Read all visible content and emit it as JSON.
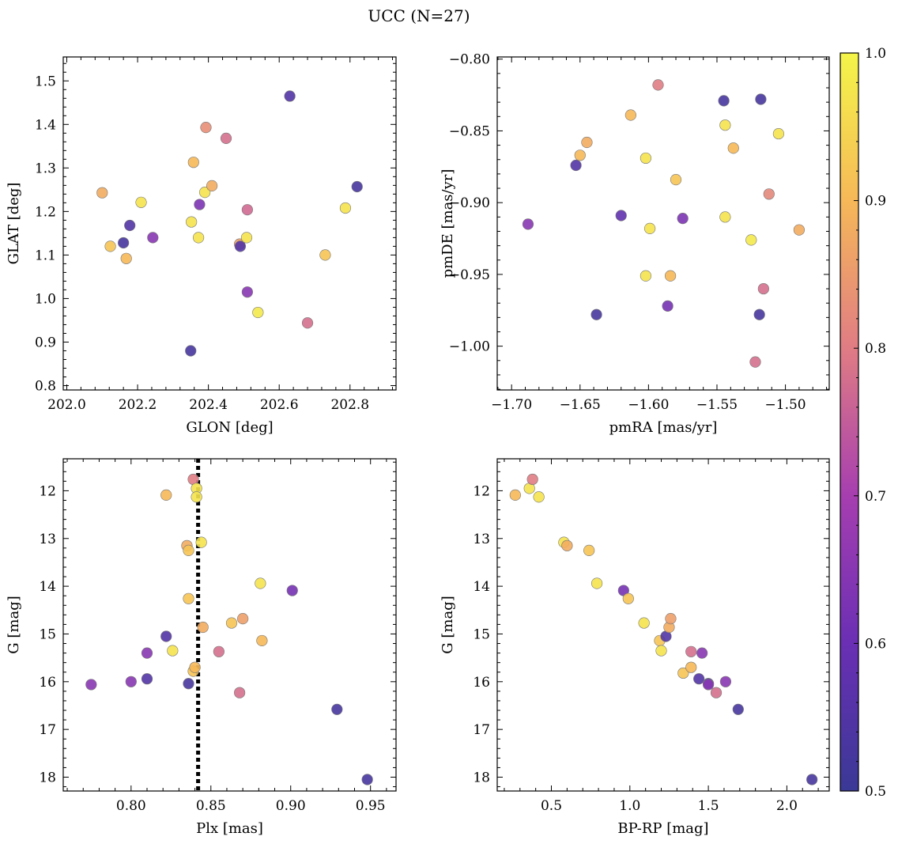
{
  "title": "UCC (N=27)",
  "colorbar": {
    "vmin": 0.5,
    "vmax": 1.0,
    "ticks": [
      "0.5",
      "0.6",
      "0.7",
      "0.8",
      "0.9",
      "1.0"
    ],
    "colormap": "plasma"
  },
  "chart_data": [
    {
      "type": "scatter",
      "id": "glon_glat",
      "xlabel": "GLON [deg]",
      "ylabel": "GLAT [deg]",
      "xlim": [
        201.99,
        202.93
      ],
      "ylim": [
        0.79,
        1.555
      ],
      "y_inverted": false,
      "xticks": [
        {
          "v": 202.0,
          "label": "202.0"
        },
        {
          "v": 202.2,
          "label": "202.2"
        },
        {
          "v": 202.4,
          "label": "202.4"
        },
        {
          "v": 202.6,
          "label": "202.6"
        },
        {
          "v": 202.8,
          "label": "202.8"
        }
      ],
      "yticks": [
        {
          "v": 0.8,
          "label": "0.8"
        },
        {
          "v": 0.9,
          "label": "0.9"
        },
        {
          "v": 1.0,
          "label": "1.0"
        },
        {
          "v": 1.1,
          "label": "1.1"
        },
        {
          "v": 1.2,
          "label": "1.2"
        },
        {
          "v": 1.3,
          "label": "1.3"
        },
        {
          "v": 1.4,
          "label": "1.4"
        },
        {
          "v": 1.5,
          "label": "1.5"
        }
      ],
      "points": [
        {
          "x": 202.1,
          "y": 1.243,
          "c": 0.88
        },
        {
          "x": 202.123,
          "y": 1.12,
          "c": 0.92
        },
        {
          "x": 202.16,
          "y": 1.128,
          "c": 0.53
        },
        {
          "x": 202.168,
          "y": 1.092,
          "c": 0.9
        },
        {
          "x": 202.178,
          "y": 1.168,
          "c": 0.55
        },
        {
          "x": 202.21,
          "y": 1.221,
          "c": 0.97
        },
        {
          "x": 202.243,
          "y": 1.14,
          "c": 0.65
        },
        {
          "x": 202.35,
          "y": 0.88,
          "c": 0.53
        },
        {
          "x": 202.352,
          "y": 1.176,
          "c": 0.97
        },
        {
          "x": 202.358,
          "y": 1.313,
          "c": 0.9
        },
        {
          "x": 202.372,
          "y": 1.14,
          "c": 0.97
        },
        {
          "x": 202.375,
          "y": 1.216,
          "c": 0.63
        },
        {
          "x": 202.39,
          "y": 1.244,
          "c": 0.97
        },
        {
          "x": 202.393,
          "y": 1.393,
          "c": 0.83
        },
        {
          "x": 202.41,
          "y": 1.259,
          "c": 0.88
        },
        {
          "x": 202.45,
          "y": 1.368,
          "c": 0.78
        },
        {
          "x": 202.488,
          "y": 1.125,
          "c": 0.86
        },
        {
          "x": 202.49,
          "y": 1.12,
          "c": 0.55
        },
        {
          "x": 202.508,
          "y": 1.14,
          "c": 0.97
        },
        {
          "x": 202.51,
          "y": 1.204,
          "c": 0.77
        },
        {
          "x": 202.51,
          "y": 1.015,
          "c": 0.65
        },
        {
          "x": 202.54,
          "y": 0.968,
          "c": 0.98
        },
        {
          "x": 202.63,
          "y": 1.465,
          "c": 0.55
        },
        {
          "x": 202.68,
          "y": 0.944,
          "c": 0.78
        },
        {
          "x": 202.73,
          "y": 1.1,
          "c": 0.92
        },
        {
          "x": 202.787,
          "y": 1.208,
          "c": 0.97
        },
        {
          "x": 202.82,
          "y": 1.257,
          "c": 0.53
        }
      ]
    },
    {
      "type": "scatter",
      "id": "pmra_pmde",
      "xlabel": "pmRA [mas/yr]",
      "ylabel": "pmDE [mas/yr]",
      "xlim": [
        -1.7105,
        -1.468
      ],
      "ylim": [
        -1.0305,
        -0.7985
      ],
      "y_inverted": false,
      "xticks": [
        {
          "v": -1.7,
          "label": "−1.70"
        },
        {
          "v": -1.65,
          "label": "−1.65"
        },
        {
          "v": -1.6,
          "label": "−1.60"
        },
        {
          "v": -1.55,
          "label": "−1.55"
        },
        {
          "v": -1.5,
          "label": "−1.50"
        }
      ],
      "yticks": [
        {
          "v": -0.8,
          "label": "−0.80"
        },
        {
          "v": -0.85,
          "label": "−0.85"
        },
        {
          "v": -0.9,
          "label": "−0.90"
        },
        {
          "v": -0.95,
          "label": "−0.95"
        },
        {
          "v": -1.0,
          "label": "−1.00"
        }
      ],
      "points": [
        {
          "x": -1.688,
          "y": -0.915,
          "c": 0.65
        },
        {
          "x": -1.653,
          "y": -0.874,
          "c": 0.55
        },
        {
          "x": -1.65,
          "y": -0.867,
          "c": 0.9
        },
        {
          "x": -1.645,
          "y": -0.858,
          "c": 0.88
        },
        {
          "x": -1.638,
          "y": -0.978,
          "c": 0.53
        },
        {
          "x": -1.62,
          "y": -0.909,
          "c": 0.58
        },
        {
          "x": -1.613,
          "y": -0.839,
          "c": 0.9
        },
        {
          "x": -1.602,
          "y": -0.869,
          "c": 0.97
        },
        {
          "x": -1.602,
          "y": -0.951,
          "c": 0.97
        },
        {
          "x": -1.599,
          "y": -0.918,
          "c": 0.97
        },
        {
          "x": -1.593,
          "y": -0.818,
          "c": 0.8
        },
        {
          "x": -1.586,
          "y": -0.972,
          "c": 0.62
        },
        {
          "x": -1.584,
          "y": -0.951,
          "c": 0.9
        },
        {
          "x": -1.58,
          "y": -0.884,
          "c": 0.92
        },
        {
          "x": -1.575,
          "y": -0.911,
          "c": 0.63
        },
        {
          "x": -1.545,
          "y": -0.829,
          "c": 0.53
        },
        {
          "x": -1.544,
          "y": -0.846,
          "c": 0.97
        },
        {
          "x": -1.544,
          "y": -0.91,
          "c": 0.97
        },
        {
          "x": -1.538,
          "y": -0.862,
          "c": 0.9
        },
        {
          "x": -1.525,
          "y": -0.926,
          "c": 0.98
        },
        {
          "x": -1.522,
          "y": -1.011,
          "c": 0.78
        },
        {
          "x": -1.519,
          "y": -0.978,
          "c": 0.53
        },
        {
          "x": -1.518,
          "y": -0.828,
          "c": 0.53
        },
        {
          "x": -1.516,
          "y": -0.96,
          "c": 0.78
        },
        {
          "x": -1.512,
          "y": -0.894,
          "c": 0.82
        },
        {
          "x": -1.505,
          "y": -0.852,
          "c": 0.97
        },
        {
          "x": -1.49,
          "y": -0.919,
          "c": 0.88
        }
      ]
    },
    {
      "type": "scatter",
      "id": "plx_g",
      "xlabel": "Plx [mas]",
      "ylabel": "G [mag]",
      "xlim": [
        0.7575,
        0.966
      ],
      "ylim": [
        11.33,
        18.29
      ],
      "y_inverted": true,
      "vline": {
        "x": 0.842,
        "style": "dotted"
      },
      "xticks": [
        {
          "v": 0.8,
          "label": "0.80"
        },
        {
          "v": 0.85,
          "label": "0.85"
        },
        {
          "v": 0.9,
          "label": "0.90"
        },
        {
          "v": 0.95,
          "label": "0.95"
        }
      ],
      "yticks": [
        {
          "v": 12,
          "label": "12"
        },
        {
          "v": 13,
          "label": "13"
        },
        {
          "v": 14,
          "label": "14"
        },
        {
          "v": 15,
          "label": "15"
        },
        {
          "v": 16,
          "label": "16"
        },
        {
          "v": 17,
          "label": "17"
        },
        {
          "v": 18,
          "label": "18"
        }
      ],
      "points": [
        {
          "x": 0.775,
          "y": 16.06,
          "c": 0.65
        },
        {
          "x": 0.8,
          "y": 16.0,
          "c": 0.65
        },
        {
          "x": 0.81,
          "y": 15.4,
          "c": 0.65
        },
        {
          "x": 0.81,
          "y": 15.94,
          "c": 0.55
        },
        {
          "x": 0.822,
          "y": 12.09,
          "c": 0.9
        },
        {
          "x": 0.822,
          "y": 15.05,
          "c": 0.55
        },
        {
          "x": 0.826,
          "y": 15.35,
          "c": 0.97
        },
        {
          "x": 0.835,
          "y": 13.15,
          "c": 0.88
        },
        {
          "x": 0.836,
          "y": 13.25,
          "c": 0.92
        },
        {
          "x": 0.836,
          "y": 14.26,
          "c": 0.92
        },
        {
          "x": 0.836,
          "y": 16.04,
          "c": 0.53
        },
        {
          "x": 0.839,
          "y": 11.76,
          "c": 0.8
        },
        {
          "x": 0.839,
          "y": 15.78,
          "c": 0.92
        },
        {
          "x": 0.84,
          "y": 15.7,
          "c": 0.9
        },
        {
          "x": 0.841,
          "y": 11.95,
          "c": 0.97
        },
        {
          "x": 0.841,
          "y": 12.13,
          "c": 0.97
        },
        {
          "x": 0.844,
          "y": 13.08,
          "c": 0.97
        },
        {
          "x": 0.845,
          "y": 14.86,
          "c": 0.88
        },
        {
          "x": 0.855,
          "y": 15.37,
          "c": 0.78
        },
        {
          "x": 0.863,
          "y": 14.77,
          "c": 0.92
        },
        {
          "x": 0.868,
          "y": 16.23,
          "c": 0.78
        },
        {
          "x": 0.87,
          "y": 14.68,
          "c": 0.86
        },
        {
          "x": 0.881,
          "y": 13.94,
          "c": 0.97
        },
        {
          "x": 0.882,
          "y": 15.14,
          "c": 0.9
        },
        {
          "x": 0.901,
          "y": 14.09,
          "c": 0.62
        },
        {
          "x": 0.929,
          "y": 16.58,
          "c": 0.53
        },
        {
          "x": 0.948,
          "y": 18.05,
          "c": 0.53
        }
      ]
    },
    {
      "type": "scatter",
      "id": "bprp_g",
      "xlabel": "BP-RP [mag]",
      "ylabel": "G [mag]",
      "xlim": [
        0.155,
        2.27
      ],
      "ylim": [
        11.33,
        18.29
      ],
      "y_inverted": true,
      "xticks": [
        {
          "v": 0.5,
          "label": "0.5"
        },
        {
          "v": 1.0,
          "label": "1.0"
        },
        {
          "v": 1.5,
          "label": "1.5"
        },
        {
          "v": 2.0,
          "label": "2.0"
        }
      ],
      "yticks": [
        {
          "v": 12,
          "label": "12"
        },
        {
          "v": 13,
          "label": "13"
        },
        {
          "v": 14,
          "label": "14"
        },
        {
          "v": 15,
          "label": "15"
        },
        {
          "v": 16,
          "label": "16"
        },
        {
          "v": 17,
          "label": "17"
        },
        {
          "v": 18,
          "label": "18"
        }
      ],
      "points": [
        {
          "x": 0.27,
          "y": 12.09,
          "c": 0.9
        },
        {
          "x": 0.36,
          "y": 11.95,
          "c": 0.97
        },
        {
          "x": 0.38,
          "y": 11.76,
          "c": 0.8
        },
        {
          "x": 0.42,
          "y": 12.13,
          "c": 0.97
        },
        {
          "x": 0.58,
          "y": 13.08,
          "c": 0.97
        },
        {
          "x": 0.6,
          "y": 13.15,
          "c": 0.88
        },
        {
          "x": 0.74,
          "y": 13.25,
          "c": 0.92
        },
        {
          "x": 0.79,
          "y": 13.94,
          "c": 0.97
        },
        {
          "x": 0.96,
          "y": 14.09,
          "c": 0.62
        },
        {
          "x": 0.99,
          "y": 14.26,
          "c": 0.92
        },
        {
          "x": 1.09,
          "y": 14.77,
          "c": 0.97
        },
        {
          "x": 1.19,
          "y": 15.14,
          "c": 0.92
        },
        {
          "x": 1.2,
          "y": 15.35,
          "c": 0.97
        },
        {
          "x": 1.23,
          "y": 15.05,
          "c": 0.55
        },
        {
          "x": 1.25,
          "y": 14.86,
          "c": 0.88
        },
        {
          "x": 1.26,
          "y": 14.68,
          "c": 0.86
        },
        {
          "x": 1.34,
          "y": 15.82,
          "c": 0.92
        },
        {
          "x": 1.39,
          "y": 15.7,
          "c": 0.9
        },
        {
          "x": 1.39,
          "y": 15.37,
          "c": 0.78
        },
        {
          "x": 1.44,
          "y": 15.94,
          "c": 0.55
        },
        {
          "x": 1.46,
          "y": 15.4,
          "c": 0.65
        },
        {
          "x": 1.5,
          "y": 16.04,
          "c": 0.53
        },
        {
          "x": 1.5,
          "y": 16.06,
          "c": 0.65
        },
        {
          "x": 1.55,
          "y": 16.23,
          "c": 0.78
        },
        {
          "x": 1.61,
          "y": 16.0,
          "c": 0.65
        },
        {
          "x": 1.69,
          "y": 16.58,
          "c": 0.53
        },
        {
          "x": 2.16,
          "y": 18.05,
          "c": 0.53
        }
      ]
    }
  ]
}
